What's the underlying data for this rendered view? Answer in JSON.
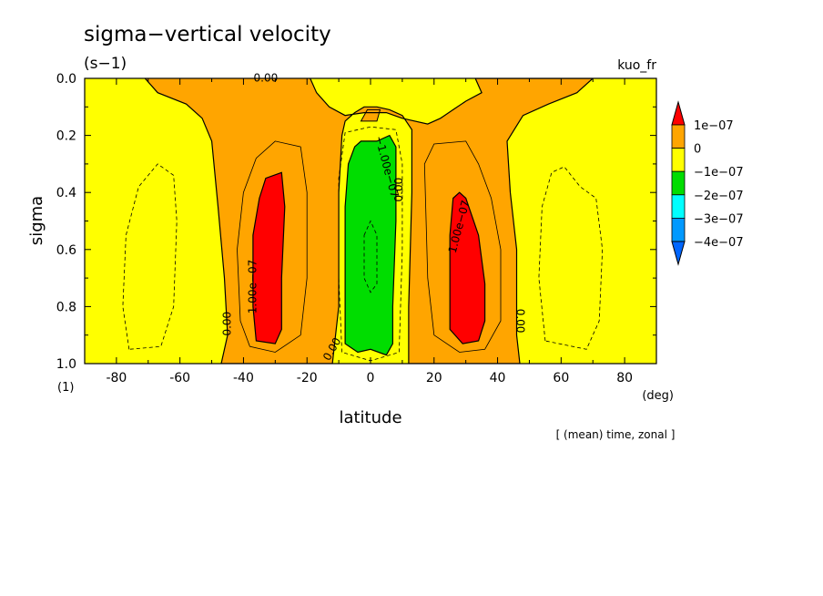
{
  "chart_data": {
    "type": "heatmap",
    "title": "sigma−vertical velocity",
    "units": "(s−1)",
    "run_label": "kuo_fr",
    "xlabel": "latitude",
    "x_unit": "(deg)",
    "ylabel": "sigma",
    "y_unit": "(1)",
    "xlim": [
      -90,
      90
    ],
    "ylim": [
      1.0,
      0.0
    ],
    "x_ticks": [
      -80,
      -60,
      -40,
      -20,
      0,
      20,
      40,
      60,
      80
    ],
    "y_ticks": [
      0.0,
      0.2,
      0.4,
      0.6,
      0.8,
      1.0
    ],
    "averaging_note": "[ (mean) time, zonal ]",
    "contour_interval": "1e-07",
    "legend": {
      "position": "right",
      "levels": [
        "1e−07",
        "0",
        "−1e−07",
        "−2e−07",
        "−3e−07",
        "−4e−07"
      ],
      "colors": {
        "above_1e-7": "#ff0000",
        "0_to_1e-7": "#ffa500",
        "-1e-7_to_0": "#ffff00",
        "-2e-7_to_-1e-7": "#00dd00",
        "-3e-7_to_-2e-7": "#00ffff",
        "-4e-7_to_-3e-7": "#0099ff",
        "below_-4e-7": "#0066ff"
      }
    },
    "contour_labels": [
      {
        "text": "0.00",
        "lat": -33,
        "sigma": 0.0,
        "angle": 0
      },
      {
        "text": "1.00e−07",
        "lat": -37,
        "sigma": 0.73,
        "angle": -90
      },
      {
        "text": "0.00",
        "lat": -45,
        "sigma": 0.86,
        "angle": -90
      },
      {
        "text": "0.00",
        "lat": -12,
        "sigma": 0.95,
        "angle": -60
      },
      {
        "text": "−1.00e−07",
        "lat": 5,
        "sigma": 0.31,
        "angle": 75
      },
      {
        "text": "0.00",
        "lat": 9,
        "sigma": 0.39,
        "angle": -90
      },
      {
        "text": "1.00e−07",
        "lat": 28,
        "sigma": 0.52,
        "angle": -75
      },
      {
        "text": "0.00",
        "lat": 47,
        "sigma": 0.85,
        "angle": 90
      }
    ],
    "regions": [
      {
        "level": "0_to_1e-7",
        "description": "positive band both sides of equator (±10° to ±45°), widening to ±70° near sigma 0"
      },
      {
        "level": "above_1e-7",
        "lat_range": [
          -37,
          -27
        ],
        "sigma_range": [
          0.33,
          0.93
        ],
        "peak": "mid-troposphere"
      },
      {
        "level": "above_1e-7",
        "lat_range": [
          25,
          37
        ],
        "sigma_range": [
          0.4,
          0.93
        ],
        "peak": "mid-troposphere"
      },
      {
        "level": "-2e-7_to_-1e-7",
        "lat_range": [
          -8,
          8
        ],
        "sigma_range": [
          0.22,
          0.97
        ]
      },
      {
        "level": "-1e-7_to_0",
        "description": "subtropical/polar descent regions and equatorial upper layer"
      }
    ]
  }
}
